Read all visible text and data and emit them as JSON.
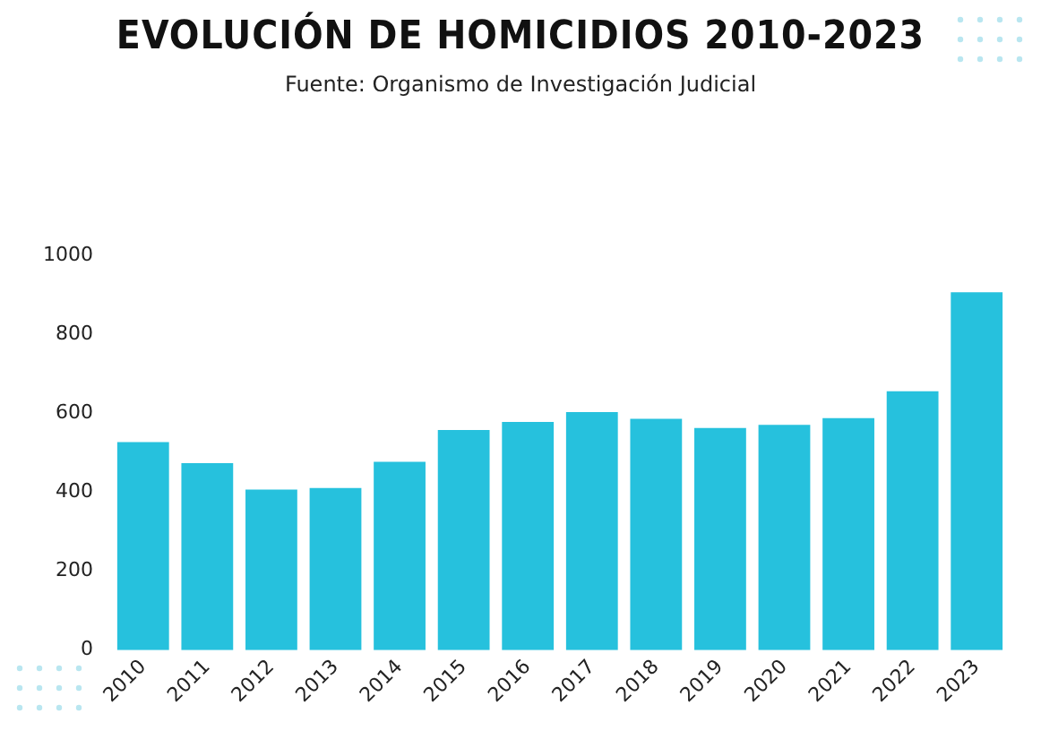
{
  "chart_data": {
    "type": "bar",
    "title": "EVOLUCIÓN DE HOMICIDIOS 2010-2023",
    "subtitle": "Fuente: Organismo de Investigación Judicial",
    "categories": [
      "2010",
      "2011",
      "2012",
      "2013",
      "2014",
      "2015",
      "2016",
      "2017",
      "2018",
      "2019",
      "2020",
      "2021",
      "2022",
      "2023"
    ],
    "values": [
      527,
      474,
      407,
      411,
      477,
      558,
      578,
      603,
      586,
      563,
      571,
      588,
      656,
      907
    ],
    "color": "#26c1dd",
    "ylim": [
      0,
      1000
    ],
    "yticks": [
      0,
      200,
      400,
      600,
      800,
      1000
    ],
    "grid": false,
    "legend": false
  }
}
